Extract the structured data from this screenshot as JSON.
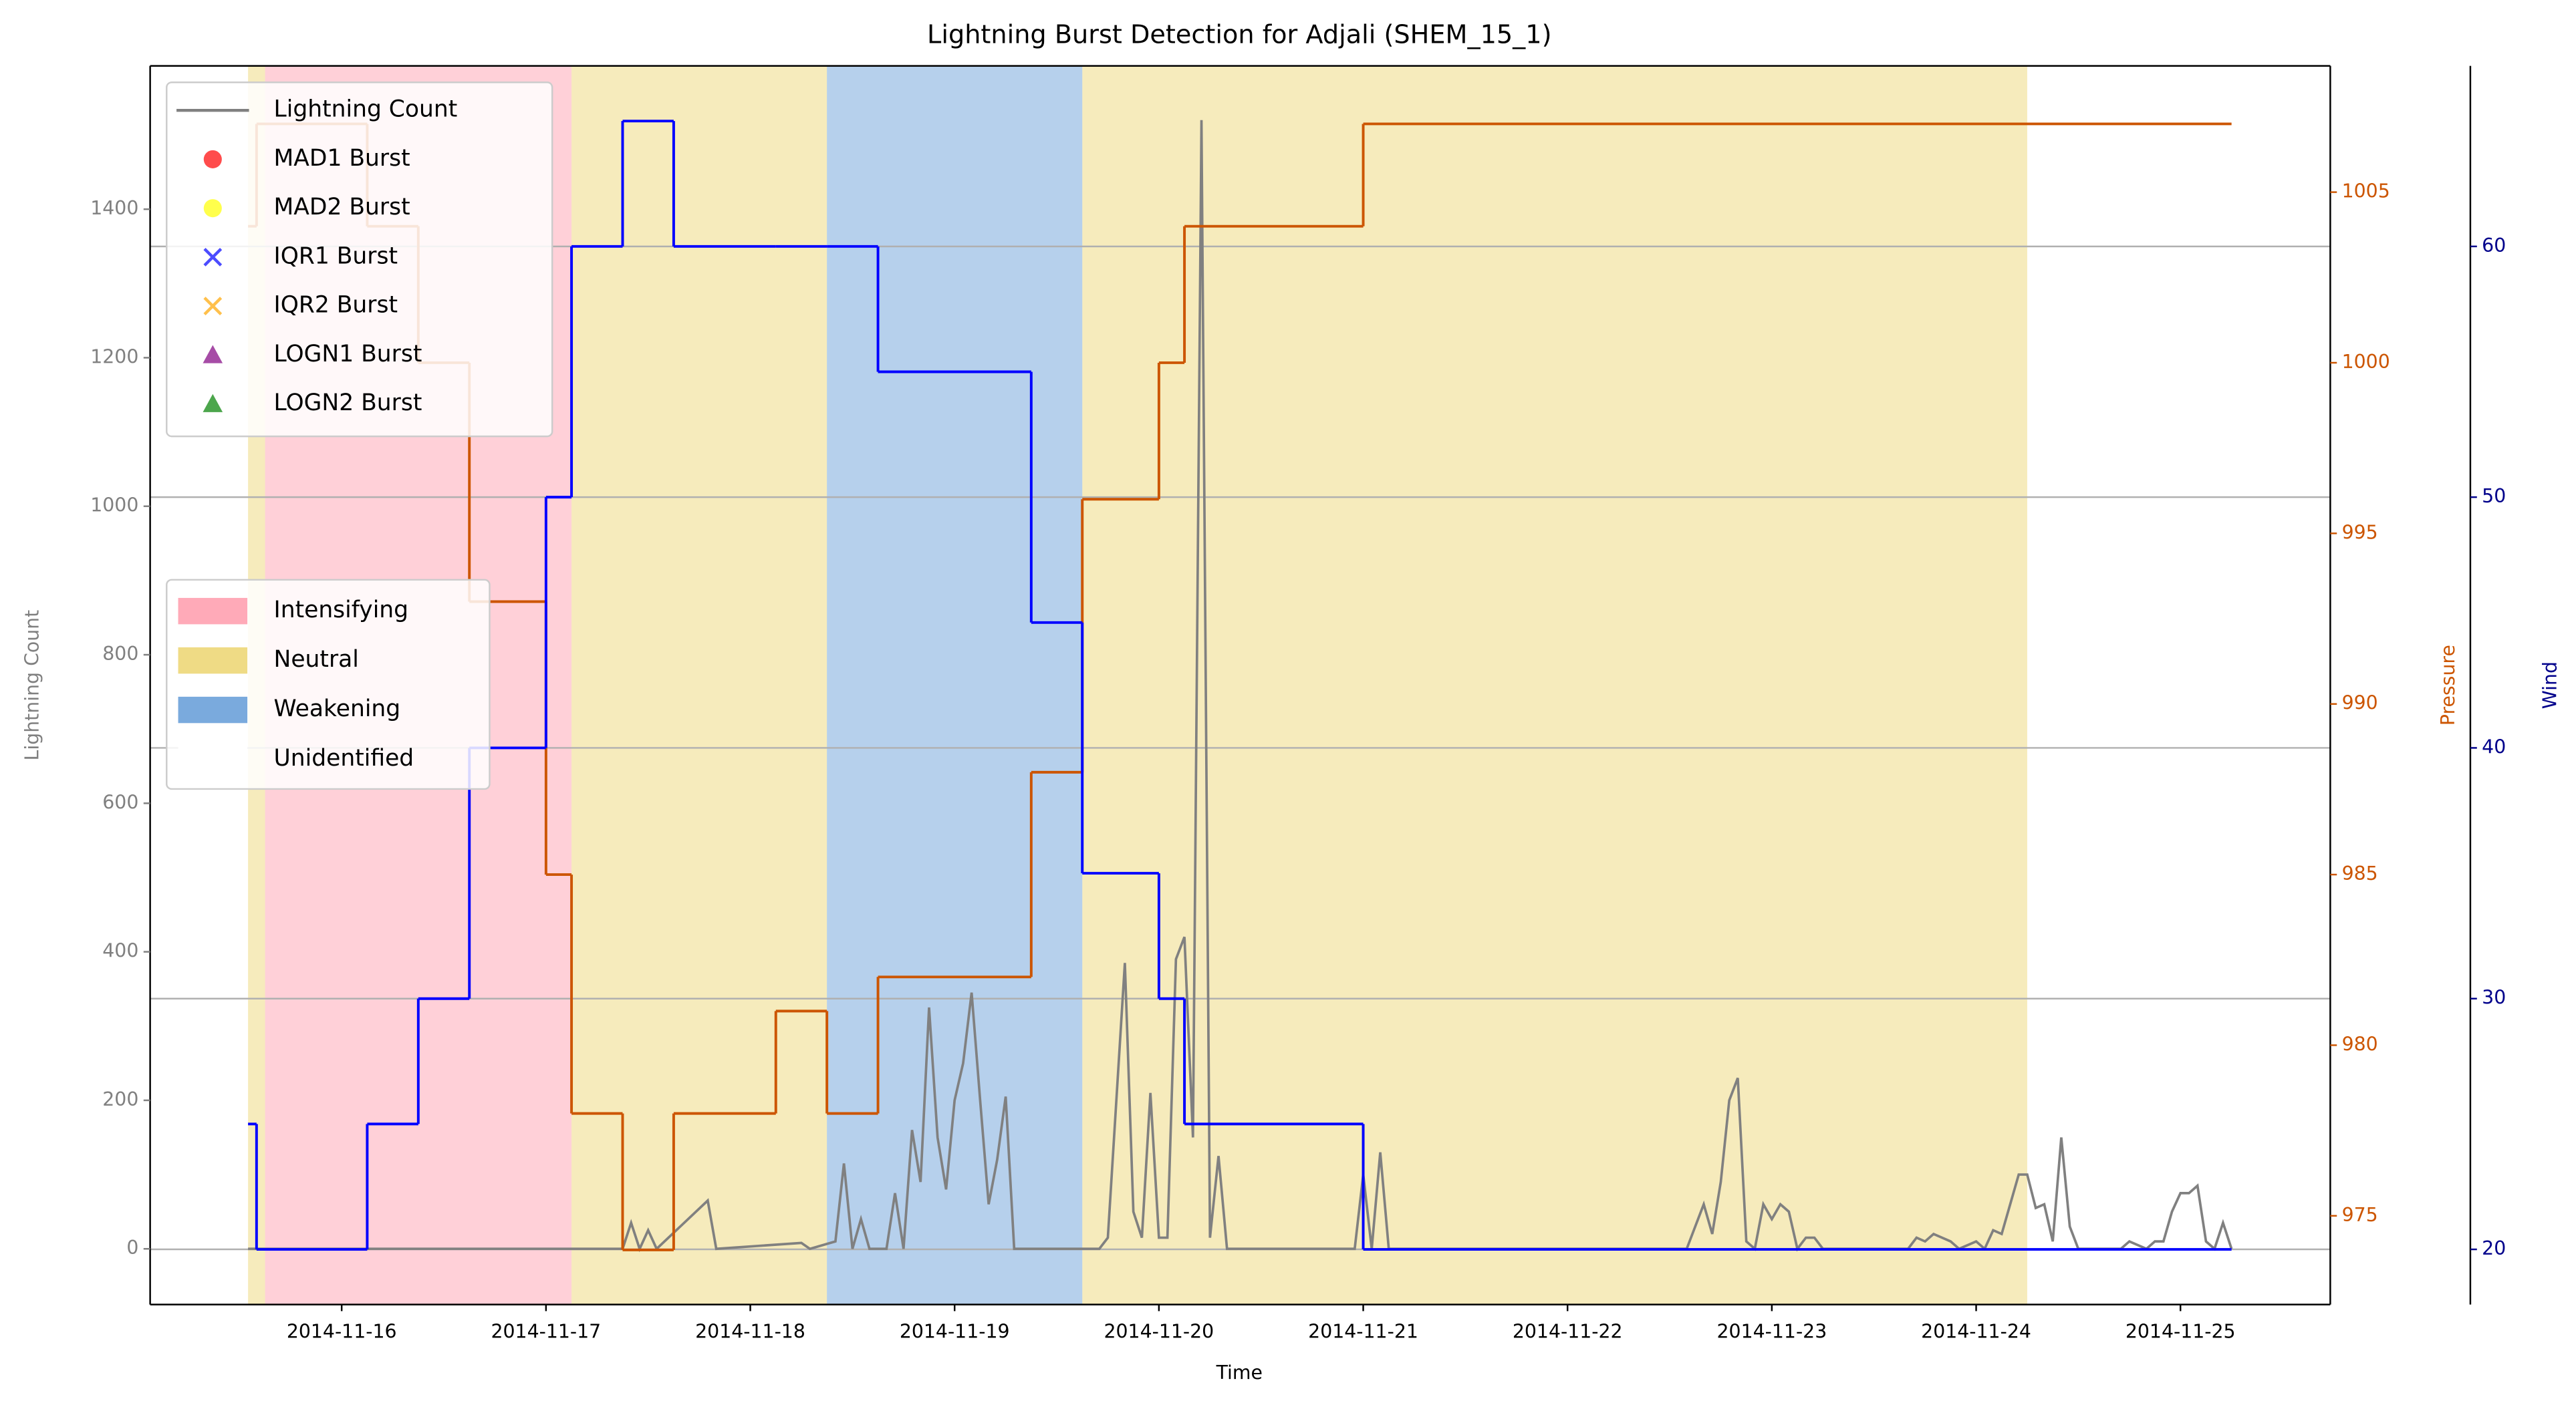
{
  "chart_data": {
    "type": "line",
    "title": "Lightning Burst Detection for Adjali (SHEM_15_1)",
    "xlabel": "Time",
    "ylabel": "Lightning Count",
    "y2label": "Pressure",
    "y3label": "Wind",
    "ycolor": "#808080",
    "y2color": "#cc5500",
    "y3color": "#00008b",
    "xlim": [
      "2014-11-15T01:30",
      "2014-11-25T17:36"
    ],
    "xticks": [
      "2014-11-16",
      "2014-11-17",
      "2014-11-18",
      "2014-11-19",
      "2014-11-20",
      "2014-11-21",
      "2014-11-22",
      "2014-11-23",
      "2014-11-24",
      "2014-11-25"
    ],
    "ylim": [
      -75,
      1593
    ],
    "yticks": [
      0,
      200,
      400,
      600,
      800,
      1000,
      1200,
      1400
    ],
    "y2lim": [
      972.4,
      1008.7
    ],
    "y2ticks": [
      975,
      980,
      985,
      990,
      995,
      1000,
      1005
    ],
    "y3lim": [
      17.8,
      67.2
    ],
    "y3ticks": [
      20,
      30,
      40,
      50,
      60
    ],
    "grid": "y3",
    "legend_loc": "upper left",
    "phase_legend_loc": "center left",
    "series": [
      {
        "name": "Lightning Count",
        "color": "#808080",
        "x": [
          "2014-11-15T13:00",
          "2014-11-17T09:00",
          "2014-11-17T10:00",
          "2014-11-17T11:00",
          "2014-11-17T12:00",
          "2014-11-17T13:00",
          "2014-11-17T19:00",
          "2014-11-17T20:00",
          "2014-11-18T06:00",
          "2014-11-18T07:00",
          "2014-11-18T10:00",
          "2014-11-18T11:00",
          "2014-11-18T12:00",
          "2014-11-18T13:00",
          "2014-11-18T14:00",
          "2014-11-18T16:00",
          "2014-11-18T17:00",
          "2014-11-18T18:00",
          "2014-11-18T19:00",
          "2014-11-18T20:00",
          "2014-11-18T21:00",
          "2014-11-18T22:00",
          "2014-11-18T23:00",
          "2014-11-19T00:00",
          "2014-11-19T01:00",
          "2014-11-19T02:00",
          "2014-11-19T03:00",
          "2014-11-19T04:00",
          "2014-11-19T05:00",
          "2014-11-19T06:00",
          "2014-11-19T07:00",
          "2014-11-19T17:00",
          "2014-11-19T18:00",
          "2014-11-19T19:00",
          "2014-11-19T20:00",
          "2014-11-19T21:00",
          "2014-11-19T22:00",
          "2014-11-19T23:00",
          "2014-11-20T00:00",
          "2014-11-20T01:00",
          "2014-11-20T02:00",
          "2014-11-20T03:00",
          "2014-11-20T04:00",
          "2014-11-20T05:00",
          "2014-11-20T06:00",
          "2014-11-20T07:00",
          "2014-11-20T08:00",
          "2014-11-20T23:00",
          "2014-11-21T00:00",
          "2014-11-21T01:00",
          "2014-11-21T02:00",
          "2014-11-21T03:00",
          "2014-11-22T14:00",
          "2014-11-22T15:00",
          "2014-11-22T16:00",
          "2014-11-22T17:00",
          "2014-11-22T18:00",
          "2014-11-22T19:00",
          "2014-11-22T20:00",
          "2014-11-22T21:00",
          "2014-11-22T22:00",
          "2014-11-22T23:00",
          "2014-11-23T00:00",
          "2014-11-23T01:00",
          "2014-11-23T02:00",
          "2014-11-23T03:00",
          "2014-11-23T04:00",
          "2014-11-23T05:00",
          "2014-11-23T06:00",
          "2014-11-23T16:00",
          "2014-11-23T17:00",
          "2014-11-23T18:00",
          "2014-11-23T19:00",
          "2014-11-23T20:00",
          "2014-11-23T21:00",
          "2014-11-23T22:00",
          "2014-11-24T00:00",
          "2014-11-24T01:00",
          "2014-11-24T02:00",
          "2014-11-24T03:00",
          "2014-11-24T04:00",
          "2014-11-24T05:00",
          "2014-11-24T06:00",
          "2014-11-24T07:00",
          "2014-11-24T08:00",
          "2014-11-24T09:00",
          "2014-11-24T10:00",
          "2014-11-24T11:00",
          "2014-11-24T12:00",
          "2014-11-24T17:00",
          "2014-11-24T18:00",
          "2014-11-24T19:00",
          "2014-11-24T20:00",
          "2014-11-24T21:00",
          "2014-11-24T22:00",
          "2014-11-24T23:00",
          "2014-11-25T00:00",
          "2014-11-25T01:00",
          "2014-11-25T02:00",
          "2014-11-25T03:00",
          "2014-11-25T04:00",
          "2014-11-25T05:00",
          "2014-11-25T06:00"
        ],
        "values": [
          0,
          0,
          35,
          0,
          25,
          0,
          65,
          0,
          8,
          0,
          10,
          115,
          0,
          40,
          0,
          0,
          75,
          0,
          160,
          90,
          325,
          150,
          80,
          200,
          250,
          345,
          200,
          60,
          120,
          205,
          0,
          0,
          15,
          200,
          385,
          50,
          15,
          210,
          15,
          15,
          390,
          420,
          150,
          1520,
          15,
          125,
          0,
          0,
          100,
          0,
          130,
          0,
          0,
          30,
          60,
          20,
          90,
          200,
          230,
          10,
          0,
          60,
          40,
          60,
          50,
          0,
          15,
          15,
          0,
          0,
          15,
          10,
          20,
          15,
          10,
          0,
          10,
          0,
          25,
          20,
          60,
          100,
          100,
          55,
          60,
          10,
          150,
          30,
          0,
          0,
          10,
          5,
          0,
          10,
          10,
          50,
          75,
          75,
          85,
          10,
          0,
          35,
          0
        ]
      }
    ],
    "step_series": {
      "x": [
        "2014-11-15T13:00",
        "2014-11-15T14:00",
        "2014-11-16T03:00",
        "2014-11-16T09:00",
        "2014-11-16T15:00",
        "2014-11-17T00:00",
        "2014-11-17T03:00",
        "2014-11-17T09:00",
        "2014-11-17T15:00",
        "2014-11-18T03:00",
        "2014-11-18T09:00",
        "2014-11-18T15:00",
        "2014-11-19T09:00",
        "2014-11-19T15:00",
        "2014-11-20T00:00",
        "2014-11-20T03:00",
        "2014-11-21T00:00",
        "2014-11-25T06:00"
      ],
      "pressure": {
        "color": "#cc5500",
        "values": [
          1004,
          1007,
          1004,
          1000,
          993,
          985,
          978,
          974,
          978,
          981,
          978,
          982,
          988,
          996,
          1000,
          1004,
          1007,
          1007
        ]
      },
      "wind": {
        "color": "#0000ff",
        "values": [
          25,
          20,
          25,
          30,
          40,
          50,
          60,
          65,
          60,
          60,
          60,
          55,
          45,
          35,
          30,
          25,
          20,
          20
        ]
      }
    },
    "burst_markers": [
      {
        "name": "MAD1 Burst",
        "color": "#ff0000",
        "marker": "circle"
      },
      {
        "name": "MAD2 Burst",
        "color": "#ffff00",
        "marker": "circle"
      },
      {
        "name": "IQR1 Burst",
        "color": "#0000ff",
        "marker": "x"
      },
      {
        "name": "IQR2 Burst",
        "color": "#ffa500",
        "marker": "x"
      },
      {
        "name": "LOGN1 Burst",
        "color": "#800080",
        "marker": "triangle"
      },
      {
        "name": "LOGN2 Burst",
        "color": "#008000",
        "marker": "triangle"
      }
    ],
    "phases": [
      {
        "name": "Intensifying",
        "color": "#ffaab8",
        "ranges": [
          [
            "2014-11-15T15:00",
            "2014-11-17T03:00"
          ]
        ]
      },
      {
        "name": "Neutral",
        "color": "#efdb85",
        "ranges": [
          [
            "2014-11-15T13:00",
            "2014-11-15T15:00"
          ],
          [
            "2014-11-17T03:00",
            "2014-11-18T09:00"
          ],
          [
            "2014-11-19T15:00",
            "2014-11-24T06:00"
          ]
        ]
      },
      {
        "name": "Weakening",
        "color": "#7aaadd",
        "ranges": [
          [
            "2014-11-18T09:00",
            "2014-11-19T15:00"
          ]
        ]
      },
      {
        "name": "Unidentified",
        "color": "#ffffff",
        "ranges": []
      }
    ]
  }
}
